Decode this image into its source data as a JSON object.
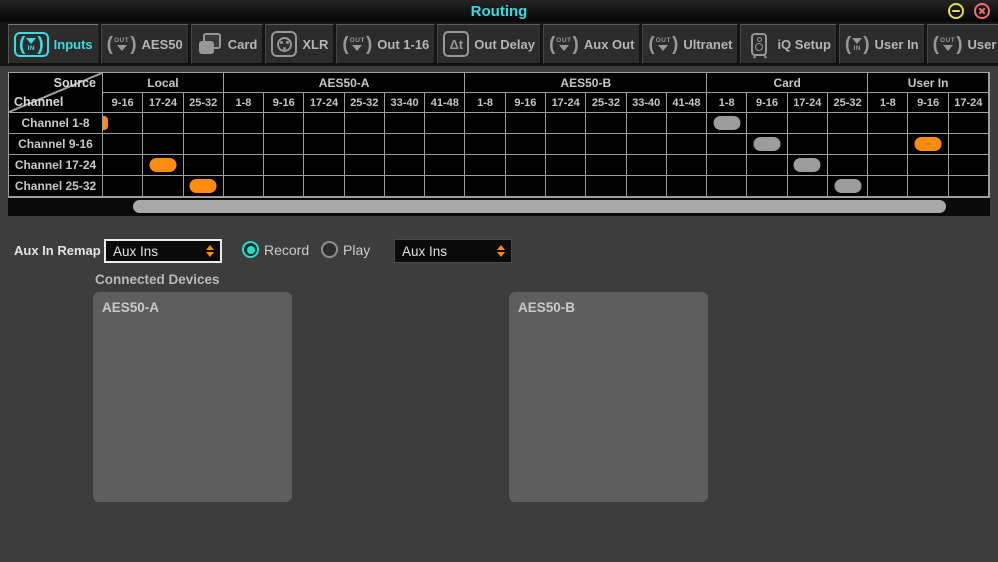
{
  "window": {
    "title": "Routing"
  },
  "icon_text": {
    "in": "IN",
    "out": "OUT",
    "delta": "Δt"
  },
  "tabs": [
    {
      "label": "Inputs",
      "icon": "in-icon",
      "selected": true
    },
    {
      "label": "AES50",
      "icon": "out-icon",
      "selected": false
    },
    {
      "label": "Card",
      "icon": "card-icon",
      "selected": false
    },
    {
      "label": "XLR",
      "icon": "xlr-icon",
      "selected": false
    },
    {
      "label": "Out 1-16",
      "icon": "out-icon",
      "selected": false
    },
    {
      "label": "Out Delay",
      "icon": "delta-icon",
      "selected": false
    },
    {
      "label": "Aux Out",
      "icon": "out-icon",
      "selected": false
    },
    {
      "label": "Ultranet",
      "icon": "out-icon",
      "selected": false
    },
    {
      "label": "iQ Setup",
      "icon": "speaker-icon",
      "selected": false
    },
    {
      "label": "User In",
      "icon": "in-icon",
      "selected": false
    },
    {
      "label": "User Out",
      "icon": "out-icon",
      "selected": false
    }
  ],
  "matrix": {
    "corner": {
      "top": "Source",
      "bottom": "Channel"
    },
    "groups": [
      {
        "label": "Local",
        "span": 3
      },
      {
        "label": "AES50-A",
        "span": 6
      },
      {
        "label": "AES50-B",
        "span": 6
      },
      {
        "label": "Card",
        "span": 4
      },
      {
        "label": "User In",
        "span": 3
      }
    ],
    "columns": [
      "9-16",
      "17-24",
      "25-32",
      "1-8",
      "9-16",
      "17-24",
      "25-32",
      "33-40",
      "41-48",
      "1-8",
      "9-16",
      "17-24",
      "25-32",
      "33-40",
      "41-48",
      "1-8",
      "9-16",
      "17-24",
      "25-32",
      "1-8",
      "9-16",
      "17-24"
    ],
    "rows": [
      "Channel 1-8",
      "Channel 9-16",
      "Channel 17-24",
      "Channel 25-32"
    ],
    "assignments": [
      {
        "row": 0,
        "col": 0,
        "color": "orange",
        "partial": true
      },
      {
        "row": 0,
        "col": 15,
        "color": "gray",
        "partial": false
      },
      {
        "row": 1,
        "col": 16,
        "color": "gray",
        "partial": false
      },
      {
        "row": 1,
        "col": 20,
        "color": "orange",
        "partial": false
      },
      {
        "row": 2,
        "col": 1,
        "color": "orange",
        "partial": false
      },
      {
        "row": 2,
        "col": 17,
        "color": "gray",
        "partial": false
      },
      {
        "row": 3,
        "col": 2,
        "color": "orange",
        "partial": false
      },
      {
        "row": 3,
        "col": 18,
        "color": "gray",
        "partial": false
      }
    ]
  },
  "remap": {
    "label": "Aux In Remap",
    "dropdown1": {
      "value": "Aux Ins",
      "focused": true
    },
    "radios": [
      {
        "label": "Record",
        "selected": true
      },
      {
        "label": "Play",
        "selected": false
      }
    ],
    "dropdown2": {
      "value": "Aux Ins",
      "focused": false
    }
  },
  "devices": {
    "heading": "Connected Devices",
    "panels": [
      "AES50-A",
      "AES50-B"
    ]
  },
  "colors": {
    "accent_cyan": "#38dce4",
    "routing_orange": "#ff8c0e",
    "routing_gray": "#9c9c9c",
    "radio_teal": "#2fd9c5",
    "dropdown_arrow_orange": "#ff8c00"
  }
}
